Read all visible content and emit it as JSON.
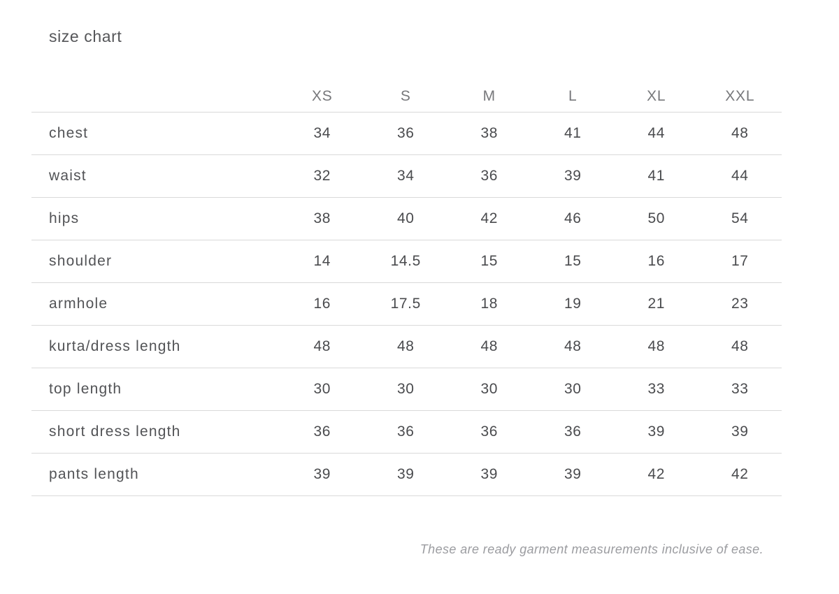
{
  "header": {
    "title": "size chart"
  },
  "chart_data": {
    "type": "table",
    "title": "size chart",
    "columns": [
      "XS",
      "S",
      "M",
      "L",
      "XL",
      "XXL"
    ],
    "rows": [
      {
        "label": "chest",
        "values": [
          "34",
          "36",
          "38",
          "41",
          "44",
          "48"
        ]
      },
      {
        "label": "waist",
        "values": [
          "32",
          "34",
          "36",
          "39",
          "41",
          "44"
        ]
      },
      {
        "label": "hips",
        "values": [
          "38",
          "40",
          "42",
          "46",
          "50",
          "54"
        ]
      },
      {
        "label": "shoulder",
        "values": [
          "14",
          "14.5",
          "15",
          "15",
          "16",
          "17"
        ]
      },
      {
        "label": "armhole",
        "values": [
          "16",
          "17.5",
          "18",
          "19",
          "21",
          "23"
        ]
      },
      {
        "label": "kurta/dress length",
        "values": [
          "48",
          "48",
          "48",
          "48",
          "48",
          "48"
        ]
      },
      {
        "label": "top length",
        "values": [
          "30",
          "30",
          "30",
          "30",
          "33",
          "33"
        ]
      },
      {
        "label": "short dress length",
        "values": [
          "36",
          "36",
          "36",
          "36",
          "39",
          "39"
        ]
      },
      {
        "label": "pants length",
        "values": [
          "39",
          "39",
          "39",
          "39",
          "42",
          "42"
        ]
      }
    ],
    "footnote": "These are ready garment measurements inclusive of ease.",
    "layout": {
      "grid": false,
      "legend": "none"
    }
  },
  "colors": {
    "background": "#ffffff",
    "title_text": "#555659",
    "column_header_text": "#77787b",
    "row_label_text": "#525356",
    "value_text": "#4a4b4e",
    "divider": "#d9d9d9",
    "footnote_text": "#9b9ca0"
  }
}
